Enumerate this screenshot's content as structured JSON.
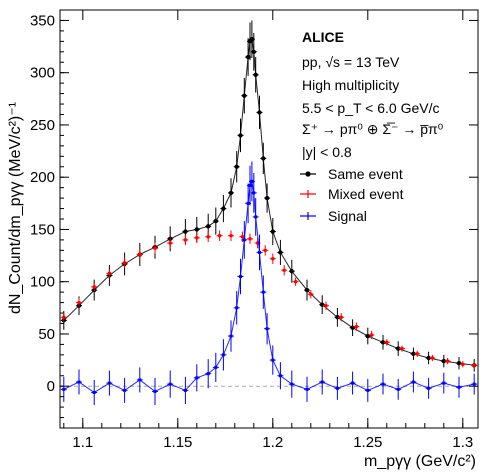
{
  "chart_data": {
    "type": "scatter",
    "title": "ALICE",
    "annotations": [
      "pp, √s = 13 TeV",
      "High multiplicity",
      "5.5 < p_T < 6.0 GeV/c",
      "Σ⁺ → pπ⁰ ⊕ Σ̅⁻ → p̅π⁰",
      "|y| < 0.8"
    ],
    "xlabel": "m_pγγ (GeV/c²)",
    "ylabel": "dN_Count/dm_pγγ (MeV/c²)⁻¹",
    "xlim": [
      1.088,
      1.308
    ],
    "ylim": [
      -40,
      360
    ],
    "x_ticks": [
      "1.1",
      "1.15",
      "1.2",
      "1.25",
      "1.3"
    ],
    "y_ticks": [
      "0",
      "50",
      "100",
      "150",
      "200",
      "250",
      "300",
      "350"
    ],
    "legend_position": "top-right",
    "reference_line": {
      "y": 0,
      "style": "dashed",
      "color": "#aaaaaa"
    },
    "series": [
      {
        "name": "Same event",
        "color": "#000000",
        "marker": "circle",
        "connect": "fit-curve",
        "points": [
          [
            1.09,
            63,
            9
          ],
          [
            1.098,
            77,
            9
          ],
          [
            1.106,
            92,
            10
          ],
          [
            1.114,
            106,
            10
          ],
          [
            1.122,
            117,
            11
          ],
          [
            1.13,
            126,
            11
          ],
          [
            1.138,
            133,
            11
          ],
          [
            1.146,
            141,
            12
          ],
          [
            1.154,
            148,
            12
          ],
          [
            1.16,
            150,
            12
          ],
          [
            1.166,
            153,
            12
          ],
          [
            1.17,
            158,
            13
          ],
          [
            1.174,
            170,
            13
          ],
          [
            1.178,
            185,
            14
          ],
          [
            1.181,
            210,
            15
          ],
          [
            1.183,
            240,
            16
          ],
          [
            1.185,
            278,
            17
          ],
          [
            1.187,
            315,
            18
          ],
          [
            1.188,
            330,
            18
          ],
          [
            1.189,
            332,
            18
          ],
          [
            1.19,
            320,
            18
          ],
          [
            1.191,
            298,
            17
          ],
          [
            1.193,
            262,
            16
          ],
          [
            1.195,
            218,
            15
          ],
          [
            1.197,
            180,
            14
          ],
          [
            1.2,
            148,
            13
          ],
          [
            1.204,
            128,
            12
          ],
          [
            1.21,
            110,
            11
          ],
          [
            1.218,
            92,
            10
          ],
          [
            1.226,
            78,
            9
          ],
          [
            1.234,
            66,
            9
          ],
          [
            1.242,
            56,
            8
          ],
          [
            1.25,
            48,
            8
          ],
          [
            1.258,
            42,
            7
          ],
          [
            1.266,
            36,
            7
          ],
          [
            1.274,
            31,
            6
          ],
          [
            1.282,
            27,
            6
          ],
          [
            1.29,
            24,
            6
          ],
          [
            1.298,
            22,
            6
          ],
          [
            1.306,
            20,
            6
          ]
        ]
      },
      {
        "name": "Mixed event",
        "color": "#ff0000",
        "marker": "cross",
        "connect": "none",
        "points": [
          [
            1.09,
            66,
            4
          ],
          [
            1.098,
            80,
            4
          ],
          [
            1.106,
            95,
            4
          ],
          [
            1.114,
            108,
            4
          ],
          [
            1.122,
            118,
            5
          ],
          [
            1.13,
            126,
            5
          ],
          [
            1.138,
            132,
            5
          ],
          [
            1.146,
            137,
            5
          ],
          [
            1.154,
            140,
            5
          ],
          [
            1.16,
            142,
            5
          ],
          [
            1.166,
            143,
            5
          ],
          [
            1.172,
            144,
            5
          ],
          [
            1.178,
            144,
            5
          ],
          [
            1.184,
            143,
            5
          ],
          [
            1.188,
            141,
            5
          ],
          [
            1.192,
            137,
            5
          ],
          [
            1.196,
            130,
            5
          ],
          [
            1.2,
            122,
            5
          ],
          [
            1.206,
            111,
            5
          ],
          [
            1.212,
            100,
            4
          ],
          [
            1.22,
            88,
            4
          ],
          [
            1.228,
            77,
            4
          ],
          [
            1.236,
            66,
            4
          ],
          [
            1.244,
            57,
            4
          ],
          [
            1.252,
            49,
            4
          ],
          [
            1.26,
            42,
            3
          ],
          [
            1.268,
            36,
            3
          ],
          [
            1.276,
            31,
            3
          ],
          [
            1.284,
            27,
            3
          ],
          [
            1.292,
            24,
            3
          ],
          [
            1.3,
            21,
            3
          ],
          [
            1.306,
            20,
            3
          ]
        ]
      },
      {
        "name": "Signal",
        "color": "#0000ff",
        "marker": "cross",
        "connect": "fit-curve",
        "points": [
          [
            1.09,
            -3,
            12
          ],
          [
            1.098,
            4,
            12
          ],
          [
            1.106,
            -6,
            12
          ],
          [
            1.114,
            3,
            12
          ],
          [
            1.122,
            -4,
            12
          ],
          [
            1.13,
            6,
            12
          ],
          [
            1.138,
            -5,
            13
          ],
          [
            1.146,
            2,
            13
          ],
          [
            1.154,
            -4,
            13
          ],
          [
            1.16,
            8,
            13
          ],
          [
            1.166,
            12,
            14
          ],
          [
            1.17,
            18,
            14
          ],
          [
            1.174,
            30,
            15
          ],
          [
            1.178,
            48,
            15
          ],
          [
            1.181,
            75,
            16
          ],
          [
            1.183,
            105,
            17
          ],
          [
            1.185,
            140,
            18
          ],
          [
            1.187,
            175,
            19
          ],
          [
            1.188,
            192,
            19
          ],
          [
            1.189,
            196,
            19
          ],
          [
            1.19,
            185,
            19
          ],
          [
            1.191,
            162,
            18
          ],
          [
            1.193,
            128,
            17
          ],
          [
            1.195,
            90,
            16
          ],
          [
            1.197,
            55,
            15
          ],
          [
            1.2,
            25,
            14
          ],
          [
            1.204,
            10,
            13
          ],
          [
            1.21,
            2,
            13
          ],
          [
            1.218,
            -3,
            12
          ],
          [
            1.226,
            4,
            12
          ],
          [
            1.234,
            -2,
            11
          ],
          [
            1.242,
            3,
            11
          ],
          [
            1.25,
            -4,
            11
          ],
          [
            1.258,
            2,
            10
          ],
          [
            1.266,
            -3,
            10
          ],
          [
            1.274,
            4,
            10
          ],
          [
            1.282,
            -2,
            10
          ],
          [
            1.29,
            3,
            10
          ],
          [
            1.298,
            -1,
            10
          ],
          [
            1.306,
            2,
            10
          ]
        ]
      }
    ]
  }
}
